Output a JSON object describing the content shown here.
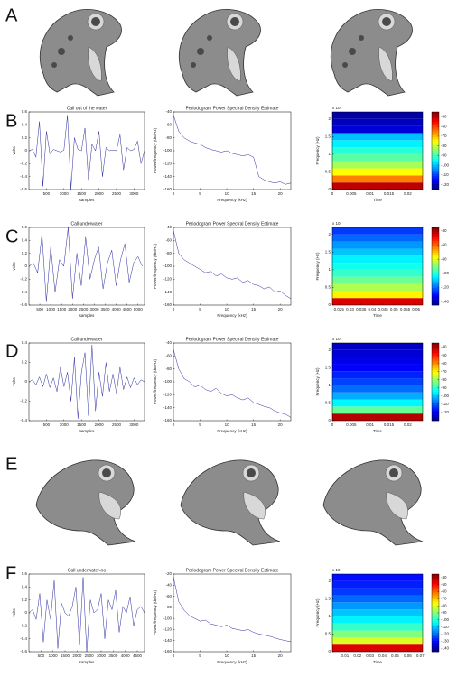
{
  "panel_labels": [
    "A",
    "B",
    "C",
    "D",
    "E",
    "F"
  ],
  "chart_data": [
    {
      "type": "line",
      "title": "Call out of the water",
      "xlabel": "samples",
      "ylabel": "volts",
      "color": "#2a2aa0",
      "x": [
        0,
        100,
        200,
        300,
        400,
        500,
        600,
        700,
        800,
        900,
        1000,
        1100,
        1200,
        1300,
        1400,
        1500,
        1600,
        1700,
        1800,
        1900,
        2000,
        2100,
        2200,
        2300,
        2400,
        2500,
        2600,
        2700,
        2800,
        2900,
        3000,
        3100,
        3200,
        3300
      ],
      "values": [
        0,
        0.02,
        -0.1,
        0.45,
        -0.55,
        0.3,
        -0.05,
        0.02,
        0,
        -0.02,
        0.01,
        0.55,
        -0.6,
        0.2,
        0.02,
        0,
        0.35,
        -0.45,
        0.1,
        0,
        0.3,
        -0.4,
        0.05,
        0,
        0.01,
        0,
        0.25,
        -0.3,
        0.05,
        0,
        0.02,
        0.15,
        -0.2,
        0
      ],
      "xlim": [
        0,
        3300
      ],
      "xticks": [
        500,
        1000,
        1500,
        2000,
        2500,
        3000
      ],
      "ylim": [
        -0.6,
        0.6
      ],
      "yticks": [
        -0.6,
        -0.4,
        -0.2,
        0,
        0.2,
        0.4,
        0.6
      ]
    },
    {
      "type": "line",
      "title": "Periodogram Power Spectral Density Estimate",
      "xlabel": "Frequency (kHz)",
      "ylabel": "Power/frequency (dB/Hz)",
      "color": "#2a2aa0",
      "x": [
        0,
        1,
        2,
        3,
        4,
        5,
        6,
        7,
        8,
        9,
        10,
        11,
        12,
        13,
        14,
        15,
        16,
        17,
        18,
        19,
        20,
        21,
        22
      ],
      "values": [
        -45,
        -70,
        -80,
        -85,
        -88,
        -90,
        -95,
        -98,
        -100,
        -102,
        -100,
        -104,
        -106,
        -108,
        -106,
        -110,
        -140,
        -145,
        -148,
        -150,
        -148,
        -152,
        -150
      ],
      "xlim": [
        0,
        22
      ],
      "xticks": [
        0,
        5,
        10,
        15,
        20
      ],
      "ylim": [
        -160,
        -40
      ],
      "yticks": [
        -160,
        -140,
        -120,
        -100,
        -80,
        -60,
        -40
      ]
    },
    {
      "type": "heatmap",
      "xlabel": "Time",
      "ylabel": "Frequency (Hz)",
      "multiplier": "x 10⁴",
      "colormap": "jet",
      "y": [
        0,
        0.2,
        0.4,
        0.6,
        0.8,
        1,
        1.2,
        1.4,
        1.6,
        1.8,
        2
      ],
      "values": [
        -50,
        -65,
        -75,
        -82,
        -88,
        -92,
        -96,
        -100,
        -118,
        -120,
        -122
      ],
      "xlim": [
        0,
        0.024
      ],
      "xticks": [
        0,
        0.005,
        0.01,
        0.015,
        0.02
      ],
      "ylim": [
        0,
        2.2
      ],
      "yticks": [
        0,
        0.5,
        1,
        1.5,
        2
      ],
      "clim": [
        -125,
        -45
      ],
      "cticks": [
        -120,
        -110,
        -100,
        -90,
        -80,
        -70,
        -60,
        -50
      ]
    },
    {
      "type": "line",
      "title": "Call underwater",
      "xlabel": "samples",
      "ylabel": "volts",
      "color": "#2a2aa0",
      "x": [
        0,
        200,
        400,
        600,
        800,
        1000,
        1200,
        1400,
        1600,
        1800,
        2000,
        2200,
        2400,
        2600,
        2800,
        3000,
        3200,
        3400,
        3600,
        3800,
        4000,
        4200,
        4400,
        4600,
        4800,
        5000,
        5200
      ],
      "values": [
        0,
        0.05,
        -0.1,
        0.5,
        -0.55,
        0.3,
        -0.4,
        0.1,
        0,
        0.6,
        -0.5,
        0.2,
        -0.3,
        0.45,
        -0.2,
        0.1,
        0.3,
        -0.35,
        0.05,
        0.25,
        -0.3,
        0.1,
        0.35,
        -0.25,
        0.05,
        0.15,
        0
      ],
      "xlim": [
        0,
        5300
      ],
      "xticks": [
        500,
        1000,
        1500,
        2000,
        2500,
        3000,
        3500,
        4000,
        4500,
        5000
      ],
      "ylim": [
        -0.6,
        0.6
      ],
      "yticks": [
        -0.6,
        -0.4,
        -0.2,
        0,
        0.2,
        0.4,
        0.6
      ]
    },
    {
      "type": "line",
      "title": "Periodogram Power Spectral Density Estimate",
      "xlabel": "Frequency (kHz)",
      "ylabel": "Power/frequency (dB/Hz)",
      "color": "#2a2aa0",
      "x": [
        0,
        1,
        2,
        3,
        4,
        5,
        6,
        7,
        8,
        9,
        10,
        11,
        12,
        13,
        14,
        15,
        16,
        17,
        18,
        19,
        20,
        21,
        22
      ],
      "values": [
        -45,
        -80,
        -90,
        -95,
        -100,
        -105,
        -110,
        -108,
        -115,
        -112,
        -118,
        -120,
        -118,
        -125,
        -122,
        -128,
        -130,
        -135,
        -132,
        -140,
        -138,
        -145,
        -150
      ],
      "xlim": [
        0,
        22
      ],
      "xticks": [
        0,
        5,
        10,
        15,
        20
      ],
      "ylim": [
        -160,
        -40
      ],
      "yticks": [
        -160,
        -140,
        -120,
        -100,
        -80,
        -60,
        -40
      ]
    },
    {
      "type": "heatmap",
      "xlabel": "Time",
      "ylabel": "Frequency (Hz)",
      "multiplier": "x 10⁴",
      "colormap": "jet",
      "y": [
        0,
        0.2,
        0.4,
        0.6,
        0.8,
        1,
        1.2,
        1.4,
        1.6,
        1.8,
        2
      ],
      "values": [
        -45,
        -75,
        -85,
        -92,
        -98,
        -102,
        -105,
        -110,
        -115,
        -120,
        -125
      ],
      "xlim": [
        0.022,
        0.063
      ],
      "xticks": [
        0.025,
        0.03,
        0.035,
        0.04,
        0.045,
        0.05,
        0.055,
        0.06
      ],
      "ylim": [
        0,
        2.2
      ],
      "yticks": [
        0,
        0.5,
        1,
        1.5,
        2
      ],
      "clim": [
        -145,
        -35
      ],
      "cticks": [
        -140,
        -120,
        -100,
        -80,
        -60,
        -40
      ]
    },
    {
      "type": "line",
      "title": "Call underwater",
      "xlabel": "samples",
      "ylabel": "volts",
      "color": "#2a2aa0",
      "x": [
        0,
        100,
        200,
        300,
        400,
        500,
        600,
        700,
        800,
        900,
        1000,
        1100,
        1200,
        1300,
        1400,
        1500,
        1600,
        1700,
        1800,
        1900,
        2000,
        2100,
        2200,
        2300,
        2400,
        2500,
        2600,
        2700,
        2800,
        2900,
        3000,
        3100,
        3200,
        3300
      ],
      "values": [
        0,
        0.02,
        -0.03,
        0.05,
        -0.05,
        0.08,
        -0.06,
        0.04,
        -0.1,
        0.15,
        -0.05,
        0.1,
        -0.2,
        0.25,
        -0.38,
        0.1,
        0.3,
        -0.35,
        0.38,
        -0.3,
        0.1,
        -0.15,
        0.2,
        -0.1,
        0.08,
        -0.12,
        0.15,
        -0.08,
        0.05,
        -0.06,
        0.04,
        -0.03,
        0.02,
        0
      ],
      "xlim": [
        0,
        3300
      ],
      "xticks": [
        500,
        1000,
        1500,
        2000,
        2500,
        3000
      ],
      "ylim": [
        -0.4,
        0.4
      ],
      "yticks": [
        -0.4,
        -0.2,
        0,
        0.2,
        0.4
      ]
    },
    {
      "type": "line",
      "title": "Periodogram Power Spectral Density Estimate",
      "xlabel": "Frequency (kHz)",
      "ylabel": "Power/frequency (dB/Hz)",
      "color": "#2a2aa0",
      "x": [
        0,
        1,
        2,
        3,
        4,
        5,
        6,
        7,
        8,
        9,
        10,
        11,
        12,
        13,
        14,
        15,
        16,
        17,
        18,
        19,
        20,
        21,
        22
      ],
      "values": [
        -50,
        -80,
        -95,
        -100,
        -108,
        -105,
        -112,
        -115,
        -110,
        -118,
        -122,
        -120,
        -125,
        -128,
        -125,
        -132,
        -135,
        -138,
        -140,
        -145,
        -148,
        -150,
        -155
      ],
      "xlim": [
        0,
        22
      ],
      "xticks": [
        0,
        5,
        10,
        15,
        20
      ],
      "ylim": [
        -160,
        -40
      ],
      "yticks": [
        -160,
        -140,
        -120,
        -100,
        -80,
        -60,
        -40
      ]
    },
    {
      "type": "heatmap",
      "xlabel": "Time",
      "ylabel": "Frequency (Hz)",
      "multiplier": "x 10⁴",
      "colormap": "jet",
      "y": [
        0,
        0.2,
        0.4,
        0.6,
        0.8,
        1,
        1.2,
        1.4,
        1.6,
        1.8,
        2
      ],
      "values": [
        -40,
        -85,
        -95,
        -102,
        -108,
        -112,
        -115,
        -118,
        -120,
        -122,
        -124
      ],
      "xlim": [
        0,
        0.024
      ],
      "xticks": [
        0,
        0.005,
        0.01,
        0.015,
        0.02
      ],
      "ylim": [
        0,
        2.2
      ],
      "yticks": [
        0,
        0.5,
        1,
        1.5,
        2
      ],
      "clim": [
        -130,
        -35
      ],
      "cticks": [
        -120,
        -110,
        -100,
        -90,
        -80,
        -70,
        -60,
        -50,
        -40
      ]
    },
    {
      "type": "line",
      "title": "Call underwater-no",
      "xlabel": "samples",
      "ylabel": "volts",
      "color": "#2a2aa0",
      "x": [
        0,
        150,
        300,
        450,
        600,
        750,
        900,
        1050,
        1200,
        1350,
        1500,
        1650,
        1800,
        1950,
        2100,
        2250,
        2400,
        2550,
        2700,
        2850,
        3000,
        3150,
        3300,
        3450,
        3600,
        3750,
        3900,
        4050,
        4200,
        4350,
        4500,
        4650,
        4800
      ],
      "values": [
        0,
        0.05,
        -0.1,
        0.3,
        -0.45,
        0.2,
        -0.1,
        0.5,
        -0.55,
        0.15,
        0,
        -0.05,
        0.1,
        0.4,
        -0.5,
        0.55,
        -0.6,
        0.2,
        0,
        0.05,
        0.3,
        -0.4,
        0.2,
        0.05,
        0.35,
        -0.3,
        0.1,
        0,
        0.25,
        -0.2,
        0.05,
        0.1,
        0
      ],
      "xlim": [
        0,
        4800
      ],
      "xticks": [
        500,
        1000,
        1500,
        2000,
        2500,
        3000,
        3500,
        4000,
        4500
      ],
      "ylim": [
        -0.6,
        0.6
      ],
      "yticks": [
        -0.6,
        -0.4,
        -0.2,
        0,
        0.2,
        0.4,
        0.6
      ]
    },
    {
      "type": "line",
      "title": "Periodogram Power Spectral Density Estimate",
      "xlabel": "Frequency (kHz)",
      "ylabel": "Power/frequency (dB/Hz)",
      "color": "#2a2aa0",
      "x": [
        0,
        1,
        2,
        3,
        4,
        5,
        6,
        7,
        8,
        9,
        10,
        11,
        12,
        13,
        14,
        15,
        16,
        17,
        18,
        19,
        20,
        21,
        22
      ],
      "values": [
        -25,
        -70,
        -85,
        -95,
        -100,
        -105,
        -103,
        -110,
        -112,
        -115,
        -112,
        -118,
        -120,
        -122,
        -120,
        -125,
        -128,
        -130,
        -132,
        -135,
        -138,
        -140,
        -142
      ],
      "xlim": [
        0,
        22
      ],
      "xticks": [
        0,
        5,
        10,
        15,
        20
      ],
      "ylim": [
        -160,
        -20
      ],
      "yticks": [
        -160,
        -140,
        -120,
        -100,
        -80,
        -60,
        -40,
        -20
      ]
    },
    {
      "type": "heatmap",
      "xlabel": "Time",
      "ylabel": "Frequency (Hz)",
      "multiplier": "x 10⁴",
      "colormap": "jet",
      "y": [
        0,
        0.2,
        0.4,
        0.6,
        0.8,
        1,
        1.2,
        1.4,
        1.6,
        1.8,
        2
      ],
      "values": [
        -45,
        -80,
        -90,
        -98,
        -105,
        -110,
        -115,
        -120,
        -125,
        -128,
        -130
      ],
      "xlim": [
        0,
        0.072
      ],
      "xticks": [
        0.01,
        0.02,
        0.03,
        0.04,
        0.05,
        0.06,
        0.07
      ],
      "ylim": [
        0,
        2.2
      ],
      "yticks": [
        0,
        0.5,
        1,
        1.5,
        2
      ],
      "clim": [
        -145,
        -35
      ],
      "cticks": [
        -140,
        -130,
        -120,
        -110,
        -100,
        -90,
        -80,
        -70,
        -60,
        -50,
        -40
      ]
    }
  ]
}
